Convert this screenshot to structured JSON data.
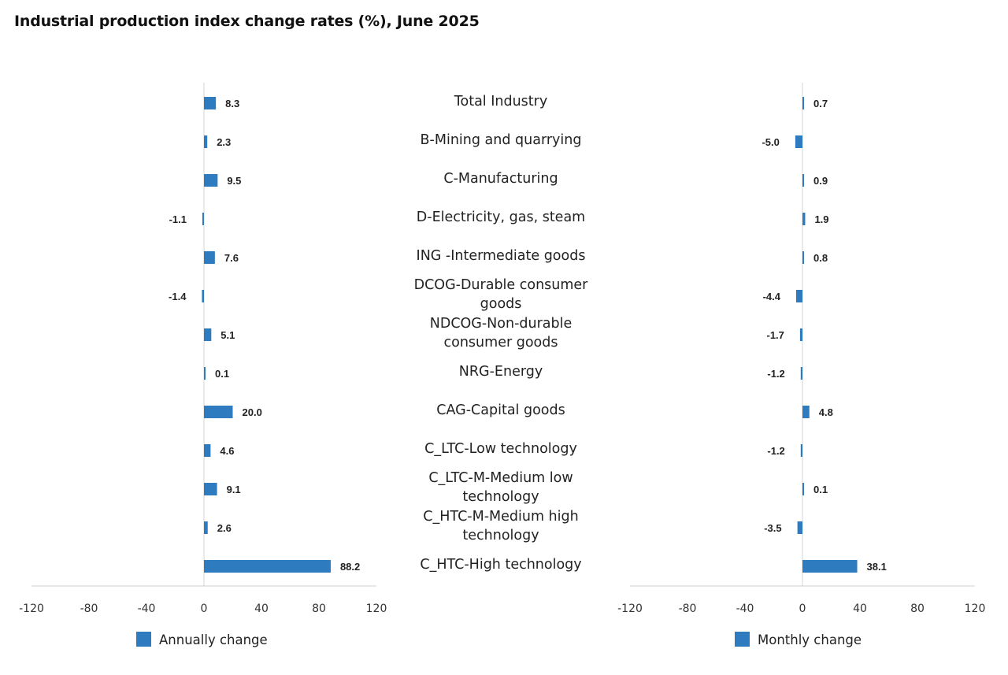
{
  "title": "Industrial production index change rates (%), June 2025",
  "chart_data": [
    {
      "type": "bar",
      "orientation": "horizontal",
      "series_name": "Annually change",
      "color": "#2e7bbf",
      "categories": [
        "Total Industry",
        "B-Mining and quarrying",
        "C-Manufacturing",
        "D-Electricity, gas, steam",
        "ING -Intermediate goods",
        "DCOG-Durable consumer goods",
        "NDCOG-Non-durable consumer goods",
        "NRG-Energy",
        "CAG-Capital goods",
        "C_LTC-Low technology",
        "C_LTC-M-Medium low technology",
        "C_HTC-M-Medium high technology",
        "C_HTC-High technology"
      ],
      "values": [
        8.3,
        2.3,
        9.5,
        -1.1,
        7.6,
        -1.4,
        5.1,
        0.1,
        20.0,
        4.6,
        9.1,
        2.6,
        88.2
      ],
      "value_labels": [
        "8.3",
        "2.3",
        "9.5",
        "-1.1",
        "7.6",
        "-1.4",
        "5.1",
        "0.1",
        "20.0",
        "4.6",
        "9.1",
        "2.6",
        "88.2"
      ],
      "xlim": [
        -120,
        120
      ],
      "ticks": [
        "-120",
        "-80",
        "-40",
        "0",
        "40",
        "80",
        "120"
      ],
      "tick_values": [
        -120,
        -80,
        -40,
        0,
        40,
        80,
        120
      ],
      "legend": "bottom"
    },
    {
      "type": "bar",
      "orientation": "horizontal",
      "series_name": "Monthly change",
      "color": "#2e7bbf",
      "categories": [
        "Total Industry",
        "B-Mining and quarrying",
        "C-Manufacturing",
        "D-Electricity, gas, steam",
        "ING -Intermediate goods",
        "DCOG-Durable consumer goods",
        "NDCOG-Non-durable consumer goods",
        "NRG-Energy",
        "CAG-Capital goods",
        "C_LTC-Low technology",
        "C_LTC-M-Medium low technology",
        "C_HTC-M-Medium high technology",
        "C_HTC-High technology"
      ],
      "values": [
        0.7,
        -5.0,
        0.9,
        1.9,
        0.8,
        -4.4,
        -1.7,
        -1.2,
        4.8,
        -1.2,
        0.1,
        -3.5,
        38.1
      ],
      "value_labels": [
        "0.7",
        "-5.0",
        "0.9",
        "1.9",
        "0.8",
        "-4.4",
        "-1.7",
        "-1.2",
        "4.8",
        "-1.2",
        "0.1",
        "-3.5",
        "38.1"
      ],
      "xlim": [
        -120,
        120
      ],
      "ticks": [
        "-120",
        "-80",
        "-40",
        "0",
        "40",
        "80",
        "120"
      ],
      "tick_values": [
        -120,
        -80,
        -40,
        0,
        40,
        80,
        120
      ],
      "legend": "bottom"
    }
  ],
  "category_labels": [
    [
      "Total Industry"
    ],
    [
      "B-Mining and quarrying"
    ],
    [
      "C-Manufacturing"
    ],
    [
      "D-Electricity, gas, steam"
    ],
    [
      "ING -Intermediate goods"
    ],
    [
      "DCOG-Durable consumer",
      "goods"
    ],
    [
      "NDCOG-Non-durable",
      "consumer goods"
    ],
    [
      "NRG-Energy"
    ],
    [
      "CAG-Capital goods"
    ],
    [
      "C_LTC-Low technology"
    ],
    [
      "C_LTC-M-Medium low",
      "technology"
    ],
    [
      "C_HTC-M-Medium high",
      "technology"
    ],
    [
      "C_HTC-High technology"
    ]
  ]
}
